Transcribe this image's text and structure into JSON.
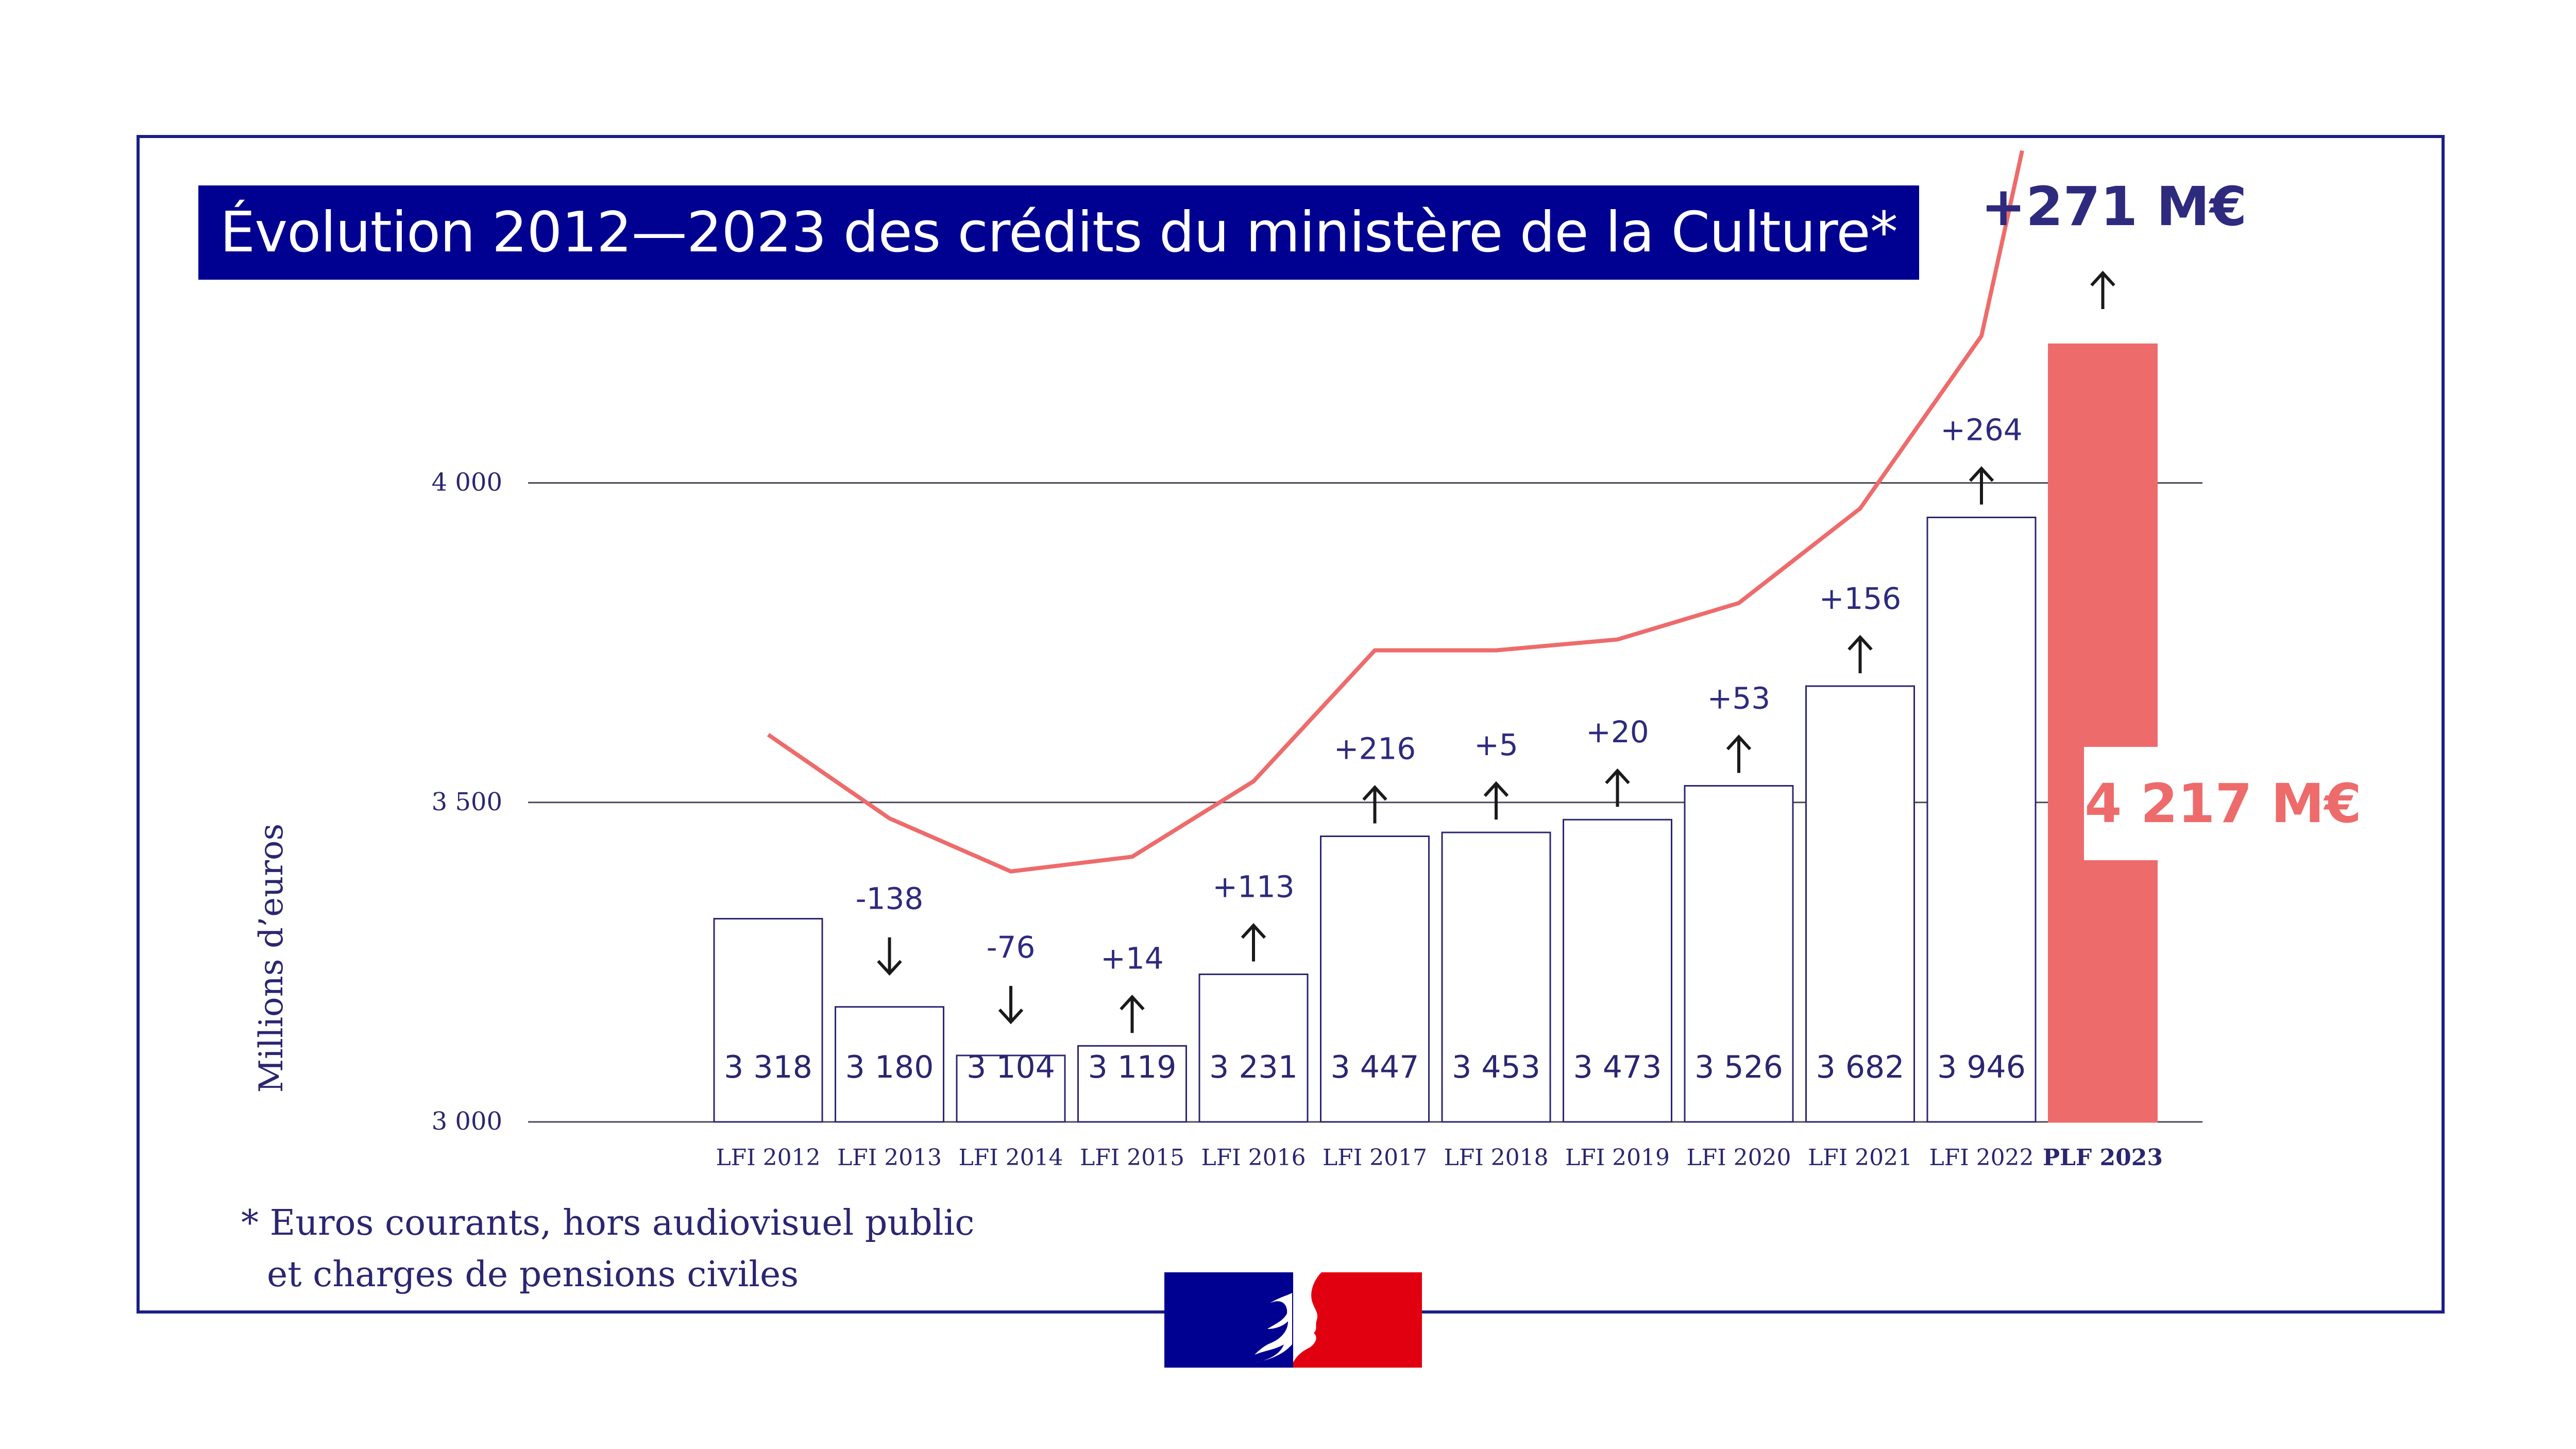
{
  "title": "Évolution 2012—2023 des crédits du ministère de la Culture*",
  "total_delta_label": "+271 M€",
  "total_value_label": "4 217 M€",
  "footnote": {
    "line1": "* Euros courants, hors audiovisuel public",
    "line2": "et charges de pensions civiles"
  },
  "colors": {
    "brand_blue": "#000091",
    "dark_navy": "#2e2a7e",
    "accent_red": "#ee6b6b",
    "bar_outline": "#2b2670",
    "marianne_red": "#e1000f"
  },
  "icons": [
    "arrow-up-icon",
    "arrow-down-icon",
    "marianne-logo"
  ],
  "chart_data": {
    "type": "bar",
    "ylabel": "Millions d’euros",
    "ylim": [
      3000,
      4217
    ],
    "yticks": [
      3000,
      3500,
      4000
    ],
    "ytick_labels": [
      "3 000",
      "3 500",
      "4 000"
    ],
    "grid": true,
    "categories": [
      "LFI 2012",
      "LFI 2013",
      "LFI 2014",
      "LFI 2015",
      "LFI 2016",
      "LFI 2017",
      "LFI 2018",
      "LFI 2019",
      "LFI 2020",
      "LFI 2021",
      "LFI 2022",
      "PLF 2023"
    ],
    "values": [
      3318,
      3180,
      3104,
      3119,
      3231,
      3447,
      3453,
      3473,
      3526,
      3682,
      3946,
      4217
    ],
    "value_labels": [
      "3 318",
      "3 180",
      "3 104",
      "3 119",
      "3 231",
      "3 447",
      "3 453",
      "3 473",
      "3 526",
      "3 682",
      "3 946",
      ""
    ],
    "change_labels": [
      "",
      "-138",
      "-76",
      "+14",
      "+113",
      "+216",
      "+5",
      "+20",
      "+53",
      "+156",
      "+264",
      "+271 M€"
    ],
    "change_directions": [
      "",
      "down",
      "down",
      "up",
      "up",
      "up",
      "up",
      "up",
      "up",
      "up",
      "up",
      "up"
    ],
    "highlight_index": 11,
    "trend_line": {
      "color": "#ee6b6b",
      "values": [
        3606,
        3475,
        3392,
        3415,
        3533,
        3738,
        3738,
        3755,
        3812,
        3960,
        4230,
        4520
      ]
    }
  }
}
